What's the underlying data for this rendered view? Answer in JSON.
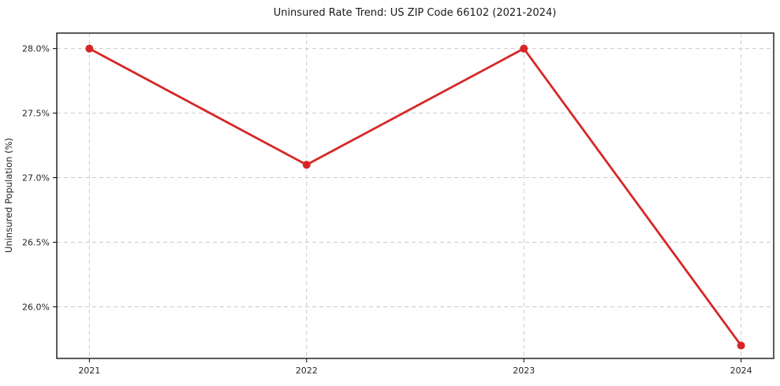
{
  "chart_data": {
    "type": "line",
    "title": "Uninsured Rate Trend: US ZIP Code 66102 (2021-2024)",
    "xlabel": "",
    "ylabel": "Uninsured Population (%)",
    "categories": [
      2021,
      2022,
      2023,
      2024
    ],
    "series": [
      {
        "name": "Uninsured population rate",
        "values": [
          28.0,
          27.1,
          28.0,
          25.7
        ],
        "color": "#d62728",
        "marker": "circle"
      }
    ],
    "xlim": [
      2020.85,
      2024.15
    ],
    "ylim": [
      25.6,
      28.12
    ],
    "xticks": {
      "values": [
        2021,
        2022,
        2023,
        2024
      ],
      "labels": [
        "2021",
        "2022",
        "2023",
        "2024"
      ]
    },
    "yticks": {
      "values": [
        26.0,
        26.5,
        27.0,
        27.5,
        28.0
      ],
      "labels": [
        "26.0%",
        "26.5%",
        "27.0%",
        "27.5%",
        "28.0%"
      ]
    },
    "grid": {
      "show": true,
      "style": "dashed",
      "color": "#cbcbcb"
    },
    "legend": {
      "show": false,
      "position": "none"
    },
    "colors": {
      "background": "#ffffff",
      "axis": "#000000",
      "tick_text": "#262626",
      "title_text": "#1a1a1a"
    }
  }
}
